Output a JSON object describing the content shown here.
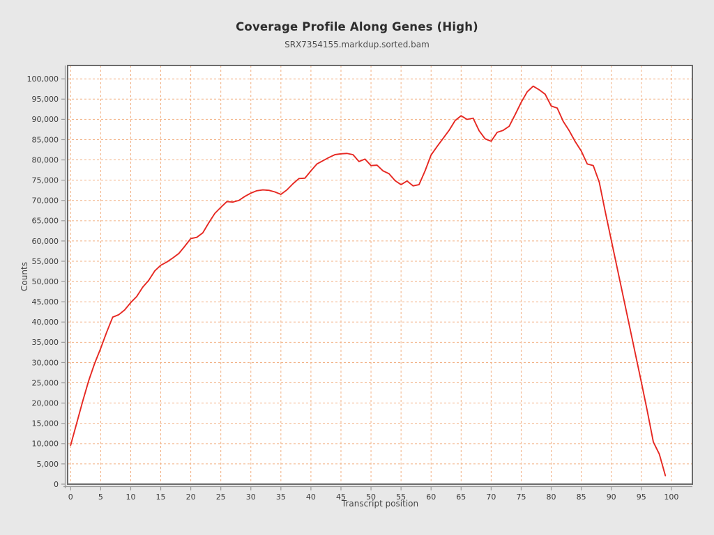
{
  "header": {
    "title": "Coverage Profile Along Genes (High)",
    "subtitle": "SRX7354155.markdup.sorted.bam"
  },
  "axes": {
    "x_label": "Transcript position",
    "y_label": "Counts"
  },
  "colors": {
    "page_background": "#e8e8e8",
    "plot_background": "#ffffff",
    "grid": "#f2b083",
    "line": "#e62822",
    "frame": "#6b6b6b",
    "axis_line": "#9a9a9a",
    "tick_label": "#3a3a3a"
  },
  "chart_data": {
    "type": "line",
    "title": "Coverage Profile Along Genes (High)",
    "subtitle": "SRX7354155.markdup.sorted.bam",
    "xlabel": "Transcript position",
    "ylabel": "Counts",
    "grid": "dashed-both-axes",
    "legend_position": "none",
    "xlim": [
      -0.5,
      103.5
    ],
    "ylim": [
      0,
      103300
    ],
    "x_ticks": [
      0,
      5,
      10,
      15,
      20,
      25,
      30,
      35,
      40,
      45,
      50,
      55,
      60,
      65,
      70,
      75,
      80,
      85,
      90,
      95,
      100
    ],
    "y_ticks": [
      0,
      5000,
      10000,
      15000,
      20000,
      25000,
      30000,
      35000,
      40000,
      45000,
      50000,
      55000,
      60000,
      65000,
      70000,
      75000,
      80000,
      85000,
      90000,
      95000,
      100000
    ],
    "series": [
      {
        "name": "SRX7354155.markdup.sorted.bam",
        "color": "#e62822",
        "x_start": 0,
        "x_step": 1,
        "values": [
          9600,
          15000,
          20400,
          25500,
          29800,
          33500,
          37500,
          41200,
          41800,
          43000,
          44800,
          46300,
          48600,
          50300,
          52600,
          54000,
          54800,
          55800,
          56900,
          58700,
          60600,
          60900,
          62000,
          64500,
          66800,
          68300,
          69700,
          69600,
          70000,
          71000,
          71800,
          72400,
          72600,
          72500,
          72100,
          71500,
          72600,
          74100,
          75400,
          75500,
          77300,
          79000,
          79800,
          80600,
          81300,
          81500,
          81600,
          81300,
          79600,
          80200,
          78600,
          78700,
          77300,
          76600,
          74900,
          73900,
          74800,
          73600,
          73900,
          77300,
          81200,
          83300,
          85300,
          87300,
          89700,
          90900,
          90000,
          90300,
          87200,
          85200,
          84600,
          86800,
          87300,
          88300,
          91200,
          94200,
          96800,
          98200,
          97300,
          96200,
          93300,
          92800,
          89500,
          87200,
          84500,
          82200,
          79000,
          78600,
          74500,
          67200,
          60200,
          53200,
          46200,
          39200,
          32200,
          25200,
          18000,
          10400,
          7400,
          2100
        ]
      }
    ]
  }
}
